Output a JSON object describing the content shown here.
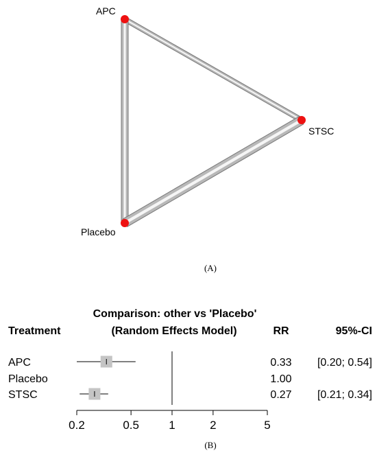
{
  "panel_a": {
    "caption": "(A)",
    "chart_data": {
      "type": "network",
      "nodes": [
        {
          "id": "APC",
          "label": "APC"
        },
        {
          "id": "STSC",
          "label": "STSC"
        },
        {
          "id": "Placebo",
          "label": "Placebo"
        }
      ],
      "edges": [
        {
          "from": "APC",
          "to": "STSC",
          "weight": 1
        },
        {
          "from": "APC",
          "to": "Placebo",
          "weight": 2
        },
        {
          "from": "Placebo",
          "to": "STSC",
          "weight": 3
        }
      ],
      "colors": {
        "node": "#ee1111",
        "edge": "#b8b8b8",
        "edge_highlight": "#f5f5f5",
        "edge_outline": "#777777"
      }
    }
  },
  "panel_b": {
    "caption": "(B)",
    "chart_data": {
      "type": "forest",
      "title_line1": "Comparison: other vs 'Placebo'",
      "title_line2": "(Random Effects Model)",
      "column_headers": {
        "treatment": "Treatment",
        "estimate": "RR",
        "ci": "95%-CI"
      },
      "scale": "log",
      "reference": 1,
      "xlim": [
        0.2,
        5
      ],
      "ticks": [
        0.2,
        0.5,
        1,
        2,
        5
      ],
      "tick_labels": [
        "0.2",
        "0.5",
        "1",
        "2",
        "5"
      ],
      "rows": [
        {
          "treatment": "APC",
          "rr": 0.33,
          "lower": 0.2,
          "upper": 0.54,
          "rr_text": "0.33",
          "ci_text": "[0.20; 0.54]"
        },
        {
          "treatment": "Placebo",
          "rr": 1.0,
          "lower": null,
          "upper": null,
          "rr_text": "1.00",
          "ci_text": ""
        },
        {
          "treatment": "STSC",
          "rr": 0.27,
          "lower": 0.21,
          "upper": 0.34,
          "rr_text": "0.27",
          "ci_text": "[0.21; 0.34]"
        }
      ],
      "colors": {
        "box": "#c4c4c4",
        "line": "#000000"
      }
    }
  }
}
